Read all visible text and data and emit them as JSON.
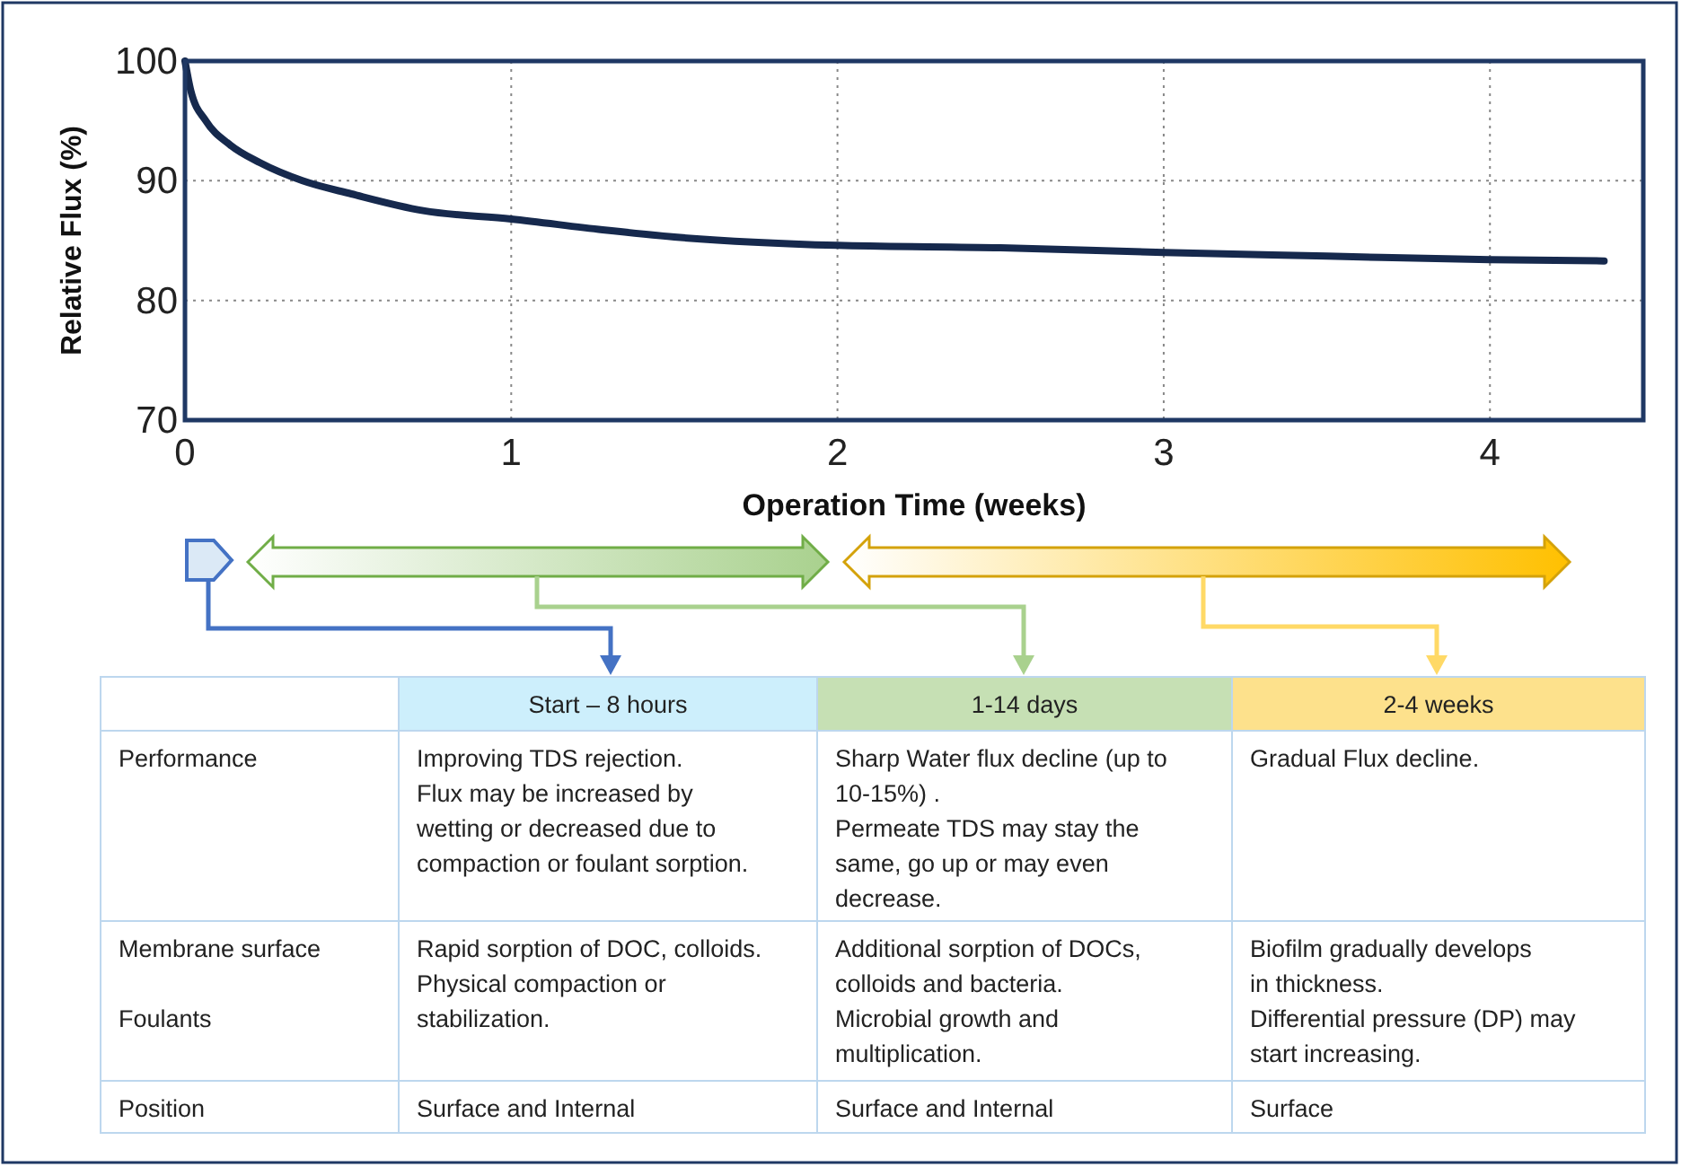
{
  "chart_data": {
    "type": "line",
    "xlabel": "Operation Time (weeks)",
    "ylabel": "Relative Flux (%)",
    "xlim": [
      0,
      4.47
    ],
    "xticks": [
      0,
      1,
      2,
      3,
      4
    ],
    "ylim": [
      70,
      100
    ],
    "yticks": [
      70,
      80,
      90,
      100
    ],
    "grid": true,
    "marker": "none",
    "line_style": "solid",
    "series": [
      {
        "color": "#16294d",
        "x": [
          0,
          0.018,
          0.064,
          0.138,
          0.23,
          0.36,
          0.51,
          0.73,
          1,
          1.28,
          1.5,
          2,
          2.5,
          3,
          3.5,
          4,
          4.35
        ],
        "values": [
          100,
          97.5,
          95,
          93,
          91.5,
          90,
          88.9,
          87.5,
          86.8,
          85.9,
          85.3,
          84.6,
          84.4,
          84.0,
          83.7,
          83.4,
          83.3
        ]
      }
    ],
    "annotations": [
      "Start – 8 hours",
      "1-14 days",
      "2-4 weeks",
      "Performance",
      "Improving TDS rejection.\nFlux may be increased by\nwetting or decreased due to\ncompaction or foulant sorption.",
      "Sharp Water flux decline (up to\n10-15%) .\nPermeate TDS may stay the\nsame, go up or may even\ndecrease.",
      "Gradual Flux decline.",
      "Membrane surface\n\nFoulants",
      "Rapid sorption of DOC, colloids.\nPhysical compaction or\nstabilization.",
      "Additional sorption of DOCs,\ncolloids and bacteria.\nMicrobial growth and\nmultiplication.",
      "Biofilm gradually develops\nin thickness.\nDifferential pressure (DP) may\nstart increasing.",
      "Position",
      "Surface and Internal",
      "Surface and Internal",
      "Surface"
    ]
  }
}
